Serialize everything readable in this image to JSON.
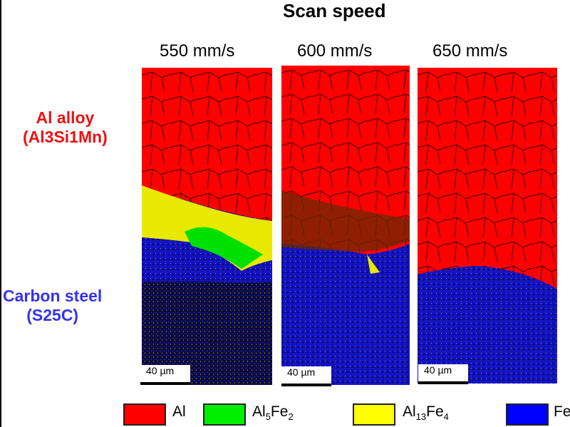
{
  "title": "Scan speed",
  "speeds": [
    "550 mm/s",
    "600 mm/s",
    "650 mm/s"
  ],
  "rows": {
    "top": {
      "line1": "Al alloy",
      "line2": "(Al3Si1Mn)",
      "color": "#ee1111"
    },
    "bottom": {
      "line1": "Carbon steel",
      "line2": "(S25C)",
      "color": "#3333ee"
    }
  },
  "scale_bar": "40 µm",
  "legend": [
    {
      "label": "Al",
      "color": "#ff0000"
    },
    {
      "label": "Al",
      "sub1": "5",
      "mid": "Fe",
      "sub2": "2",
      "color": "#00ee00"
    },
    {
      "label": "Al",
      "sub1": "13",
      "mid": "Fe",
      "sub2": "4",
      "color": "#ffff00"
    },
    {
      "label": "Fe",
      "color": "#0000ff"
    }
  ]
}
